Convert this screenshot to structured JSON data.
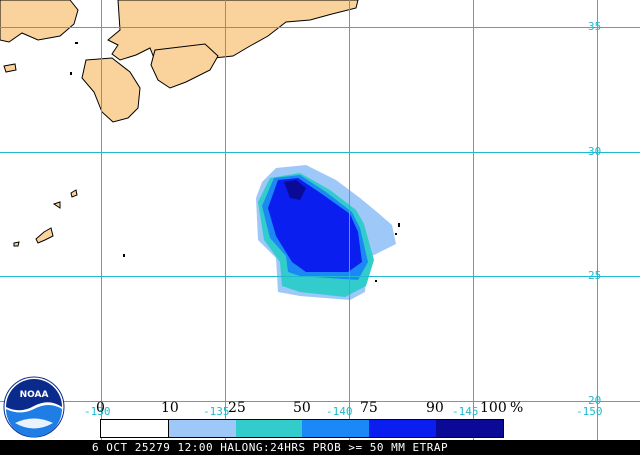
{
  "map": {
    "lat_labels": [
      "35",
      "30",
      "25",
      "20"
    ],
    "lon_labels": [
      "-130",
      "-135",
      "-140",
      "-145",
      "-150"
    ],
    "colors": {
      "land": "#fad39c",
      "grid": "#21b9cf",
      "prob_10": "#9ec8f7",
      "prob_25": "#33cccc",
      "prob_50": "#1a88f5",
      "prob_75": "#0a1ef0",
      "prob_90": "#0a0a96"
    }
  },
  "legend": {
    "labels": [
      "0",
      "10",
      "25",
      "50",
      "75",
      "90",
      "100",
      "%"
    ],
    "colors": [
      "#ffffff",
      "#9ec8f7",
      "#33cccc",
      "#1a88f5",
      "#0a1ef0",
      "#0a0a96"
    ]
  },
  "logo": {
    "text": "NOAA",
    "icon": "noaa-logo-icon"
  },
  "footer": {
    "caption": "6 OCT 25279 12:00 HALONG:24HRS PROB >= 50 MM ETRAP"
  }
}
